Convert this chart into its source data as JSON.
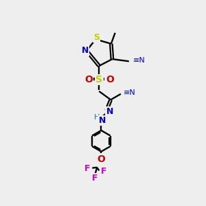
{
  "bg_color": "#eeeeee",
  "colors": {
    "S": "#cccc00",
    "N": "#0000cc",
    "O": "#cc0000",
    "C": "#000000",
    "F": "#cc00cc",
    "H": "#008080",
    "bond": "#000000"
  }
}
